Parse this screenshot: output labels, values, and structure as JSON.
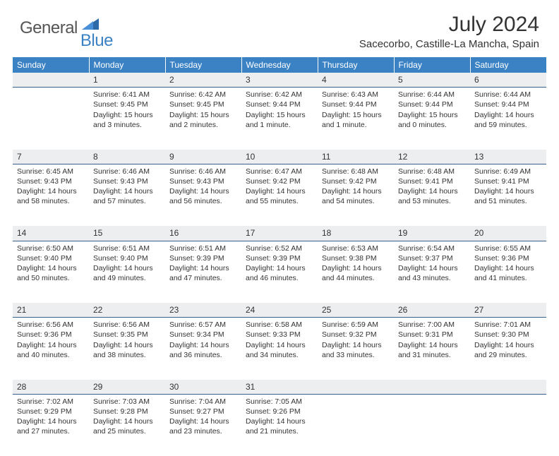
{
  "brand": {
    "text1": "General",
    "text2": "Blue",
    "text1_color": "#555555",
    "text2_color": "#3b82c4"
  },
  "title": {
    "month_year": "July 2024",
    "location": "Sacecorbo, Castille-La Mancha, Spain"
  },
  "theme": {
    "header_bg": "#3b82c4",
    "header_text": "#ffffff",
    "daynum_bg": "#eceeef",
    "daynum_border": "#365f8a",
    "body_bg": "#ffffff",
    "text_color": "#333333"
  },
  "weekdays": [
    "Sunday",
    "Monday",
    "Tuesday",
    "Wednesday",
    "Thursday",
    "Friday",
    "Saturday"
  ],
  "weeks": [
    {
      "nums": [
        "",
        "1",
        "2",
        "3",
        "4",
        "5",
        "6"
      ],
      "cells": [
        {
          "sunrise": "",
          "sunset": "",
          "daylight": ""
        },
        {
          "sunrise": "Sunrise: 6:41 AM",
          "sunset": "Sunset: 9:45 PM",
          "daylight": "Daylight: 15 hours and 3 minutes."
        },
        {
          "sunrise": "Sunrise: 6:42 AM",
          "sunset": "Sunset: 9:45 PM",
          "daylight": "Daylight: 15 hours and 2 minutes."
        },
        {
          "sunrise": "Sunrise: 6:42 AM",
          "sunset": "Sunset: 9:44 PM",
          "daylight": "Daylight: 15 hours and 1 minute."
        },
        {
          "sunrise": "Sunrise: 6:43 AM",
          "sunset": "Sunset: 9:44 PM",
          "daylight": "Daylight: 15 hours and 1 minute."
        },
        {
          "sunrise": "Sunrise: 6:44 AM",
          "sunset": "Sunset: 9:44 PM",
          "daylight": "Daylight: 15 hours and 0 minutes."
        },
        {
          "sunrise": "Sunrise: 6:44 AM",
          "sunset": "Sunset: 9:44 PM",
          "daylight": "Daylight: 14 hours and 59 minutes."
        }
      ]
    },
    {
      "nums": [
        "7",
        "8",
        "9",
        "10",
        "11",
        "12",
        "13"
      ],
      "cells": [
        {
          "sunrise": "Sunrise: 6:45 AM",
          "sunset": "Sunset: 9:43 PM",
          "daylight": "Daylight: 14 hours and 58 minutes."
        },
        {
          "sunrise": "Sunrise: 6:46 AM",
          "sunset": "Sunset: 9:43 PM",
          "daylight": "Daylight: 14 hours and 57 minutes."
        },
        {
          "sunrise": "Sunrise: 6:46 AM",
          "sunset": "Sunset: 9:43 PM",
          "daylight": "Daylight: 14 hours and 56 minutes."
        },
        {
          "sunrise": "Sunrise: 6:47 AM",
          "sunset": "Sunset: 9:42 PM",
          "daylight": "Daylight: 14 hours and 55 minutes."
        },
        {
          "sunrise": "Sunrise: 6:48 AM",
          "sunset": "Sunset: 9:42 PM",
          "daylight": "Daylight: 14 hours and 54 minutes."
        },
        {
          "sunrise": "Sunrise: 6:48 AM",
          "sunset": "Sunset: 9:41 PM",
          "daylight": "Daylight: 14 hours and 53 minutes."
        },
        {
          "sunrise": "Sunrise: 6:49 AM",
          "sunset": "Sunset: 9:41 PM",
          "daylight": "Daylight: 14 hours and 51 minutes."
        }
      ]
    },
    {
      "nums": [
        "14",
        "15",
        "16",
        "17",
        "18",
        "19",
        "20"
      ],
      "cells": [
        {
          "sunrise": "Sunrise: 6:50 AM",
          "sunset": "Sunset: 9:40 PM",
          "daylight": "Daylight: 14 hours and 50 minutes."
        },
        {
          "sunrise": "Sunrise: 6:51 AM",
          "sunset": "Sunset: 9:40 PM",
          "daylight": "Daylight: 14 hours and 49 minutes."
        },
        {
          "sunrise": "Sunrise: 6:51 AM",
          "sunset": "Sunset: 9:39 PM",
          "daylight": "Daylight: 14 hours and 47 minutes."
        },
        {
          "sunrise": "Sunrise: 6:52 AM",
          "sunset": "Sunset: 9:39 PM",
          "daylight": "Daylight: 14 hours and 46 minutes."
        },
        {
          "sunrise": "Sunrise: 6:53 AM",
          "sunset": "Sunset: 9:38 PM",
          "daylight": "Daylight: 14 hours and 44 minutes."
        },
        {
          "sunrise": "Sunrise: 6:54 AM",
          "sunset": "Sunset: 9:37 PM",
          "daylight": "Daylight: 14 hours and 43 minutes."
        },
        {
          "sunrise": "Sunrise: 6:55 AM",
          "sunset": "Sunset: 9:36 PM",
          "daylight": "Daylight: 14 hours and 41 minutes."
        }
      ]
    },
    {
      "nums": [
        "21",
        "22",
        "23",
        "24",
        "25",
        "26",
        "27"
      ],
      "cells": [
        {
          "sunrise": "Sunrise: 6:56 AM",
          "sunset": "Sunset: 9:36 PM",
          "daylight": "Daylight: 14 hours and 40 minutes."
        },
        {
          "sunrise": "Sunrise: 6:56 AM",
          "sunset": "Sunset: 9:35 PM",
          "daylight": "Daylight: 14 hours and 38 minutes."
        },
        {
          "sunrise": "Sunrise: 6:57 AM",
          "sunset": "Sunset: 9:34 PM",
          "daylight": "Daylight: 14 hours and 36 minutes."
        },
        {
          "sunrise": "Sunrise: 6:58 AM",
          "sunset": "Sunset: 9:33 PM",
          "daylight": "Daylight: 14 hours and 34 minutes."
        },
        {
          "sunrise": "Sunrise: 6:59 AM",
          "sunset": "Sunset: 9:32 PM",
          "daylight": "Daylight: 14 hours and 33 minutes."
        },
        {
          "sunrise": "Sunrise: 7:00 AM",
          "sunset": "Sunset: 9:31 PM",
          "daylight": "Daylight: 14 hours and 31 minutes."
        },
        {
          "sunrise": "Sunrise: 7:01 AM",
          "sunset": "Sunset: 9:30 PM",
          "daylight": "Daylight: 14 hours and 29 minutes."
        }
      ]
    },
    {
      "nums": [
        "28",
        "29",
        "30",
        "31",
        "",
        "",
        ""
      ],
      "cells": [
        {
          "sunrise": "Sunrise: 7:02 AM",
          "sunset": "Sunset: 9:29 PM",
          "daylight": "Daylight: 14 hours and 27 minutes."
        },
        {
          "sunrise": "Sunrise: 7:03 AM",
          "sunset": "Sunset: 9:28 PM",
          "daylight": "Daylight: 14 hours and 25 minutes."
        },
        {
          "sunrise": "Sunrise: 7:04 AM",
          "sunset": "Sunset: 9:27 PM",
          "daylight": "Daylight: 14 hours and 23 minutes."
        },
        {
          "sunrise": "Sunrise: 7:05 AM",
          "sunset": "Sunset: 9:26 PM",
          "daylight": "Daylight: 14 hours and 21 minutes."
        },
        {
          "sunrise": "",
          "sunset": "",
          "daylight": ""
        },
        {
          "sunrise": "",
          "sunset": "",
          "daylight": ""
        },
        {
          "sunrise": "",
          "sunset": "",
          "daylight": ""
        }
      ]
    }
  ]
}
